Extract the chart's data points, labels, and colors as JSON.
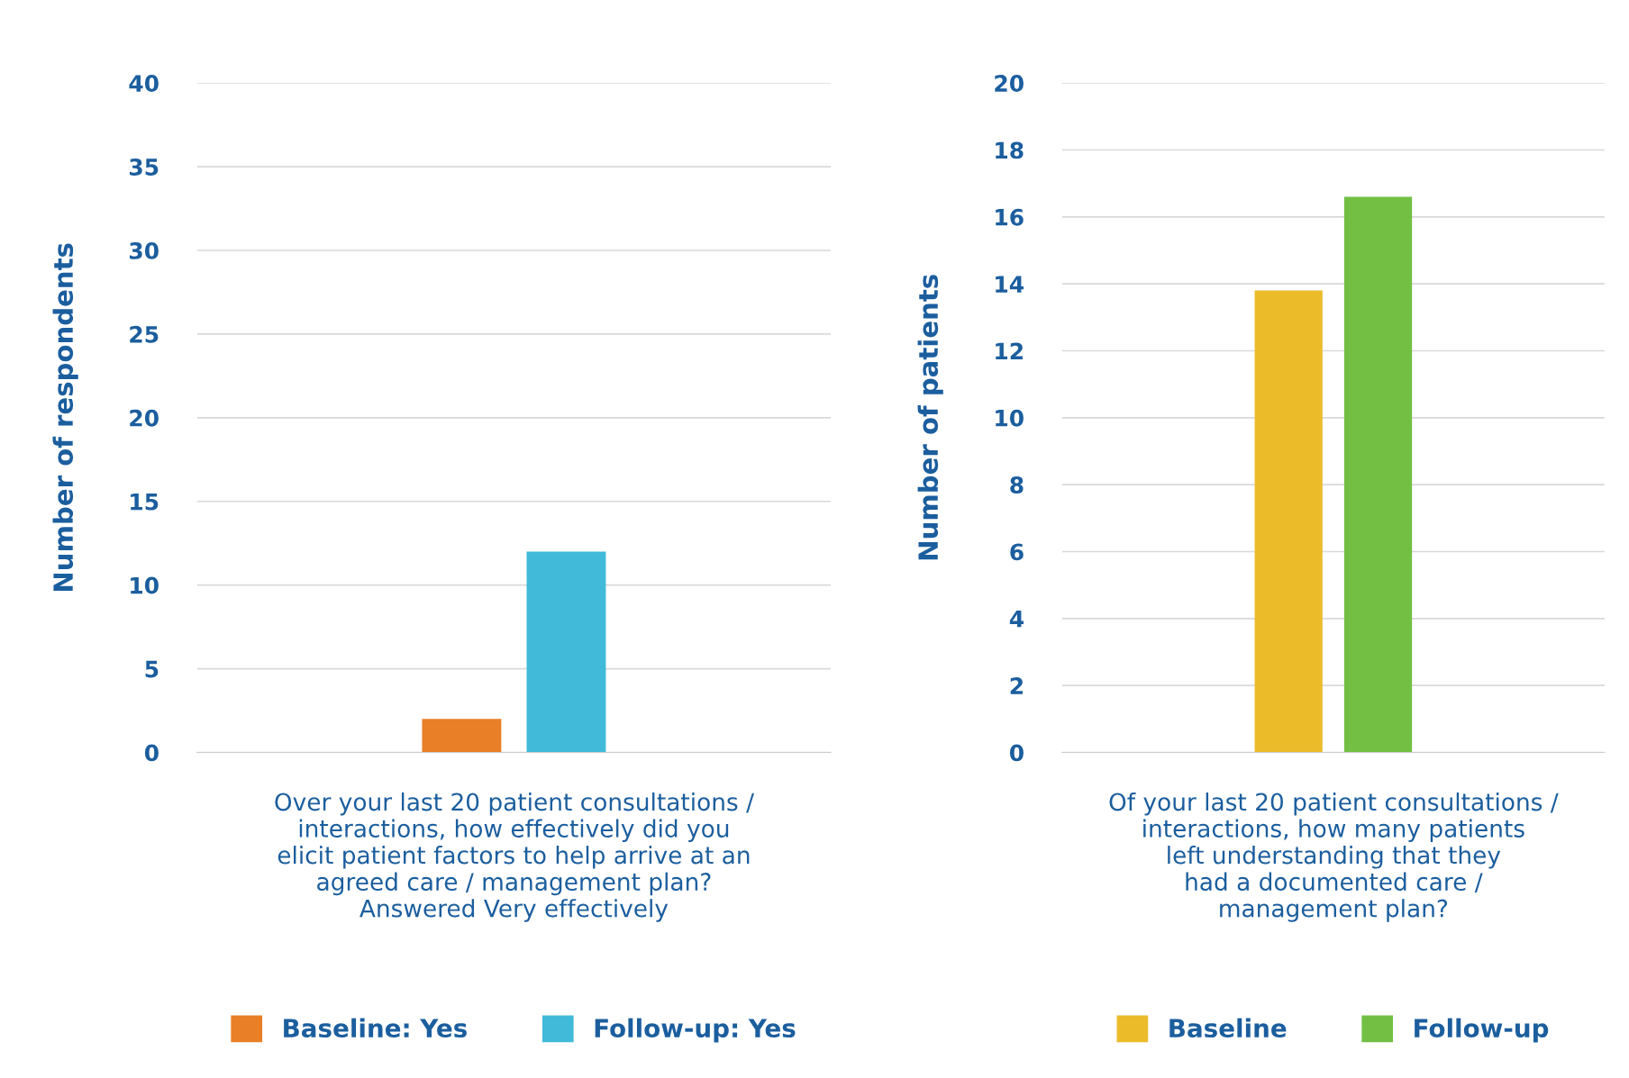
{
  "chart_data": [
    {
      "type": "bar",
      "ylabel": "Number of respondents",
      "xlabel": "Over your last 20 patient consultations /\ninteractions, how effectively did you\nelicit patient factors to help arrive at an\nagreed care / management plan?\nAnswered Very effectively",
      "categories": [
        null
      ],
      "ylim": [
        0,
        40
      ],
      "yticks": [
        0,
        5,
        10,
        15,
        20,
        25,
        30,
        35,
        40
      ],
      "grid": "y",
      "legend": "bottom",
      "series": [
        {
          "name": "Baseline: Yes",
          "color": "#e97f26",
          "values": [
            2
          ]
        },
        {
          "name": "Follow-up: Yes",
          "color": "#40bad8",
          "values": [
            12
          ]
        }
      ]
    },
    {
      "type": "bar",
      "ylabel": "Number of patients",
      "xlabel": "Of your last 20 patient consultations /\ninteractions, how many patients\nleft understanding that they\nhad a documented care /\nmanagement plan?",
      "categories": [
        null
      ],
      "ylim": [
        0,
        20
      ],
      "yticks": [
        0,
        2,
        4,
        6,
        8,
        10,
        12,
        14,
        16,
        18,
        20
      ],
      "grid": "y",
      "legend": "bottom",
      "series": [
        {
          "name": "Baseline",
          "color": "#ebbb2a",
          "values": [
            13.8
          ]
        },
        {
          "name": "Follow-up",
          "color": "#72bf44",
          "values": [
            16.6
          ]
        }
      ]
    }
  ]
}
